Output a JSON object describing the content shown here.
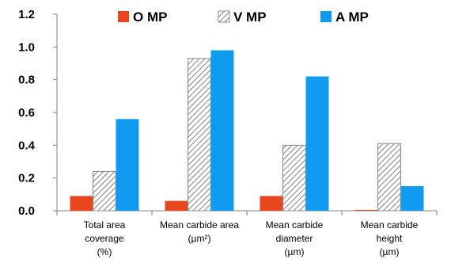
{
  "chart_data": {
    "type": "bar",
    "categories": [
      [
        "Total area",
        "coverage",
        "(%)"
      ],
      [
        "Mean carbide area",
        "(µm²)"
      ],
      [
        "Mean carbide",
        "diameter",
        "(µm)"
      ],
      [
        "Mean carbide",
        "height",
        "(µm)"
      ]
    ],
    "series": [
      {
        "name": "O MP",
        "values": [
          0.09,
          0.06,
          0.09,
          0.005
        ],
        "color": "#e8461c",
        "pattern": "solid"
      },
      {
        "name": "V MP",
        "values": [
          0.24,
          0.93,
          0.4,
          0.41
        ],
        "color": "#ffffff",
        "pattern": "diagonal-hatch"
      },
      {
        "name": "A MP",
        "values": [
          0.56,
          0.98,
          0.82,
          0.15
        ],
        "color": "#0f9bf0",
        "pattern": "solid"
      }
    ],
    "yticks": [
      "0.0",
      "0.2",
      "0.4",
      "0.6",
      "0.8",
      "1.0",
      "1.2"
    ],
    "ylim": [
      0,
      1.2
    ],
    "grid": false,
    "legend_position": "top"
  }
}
